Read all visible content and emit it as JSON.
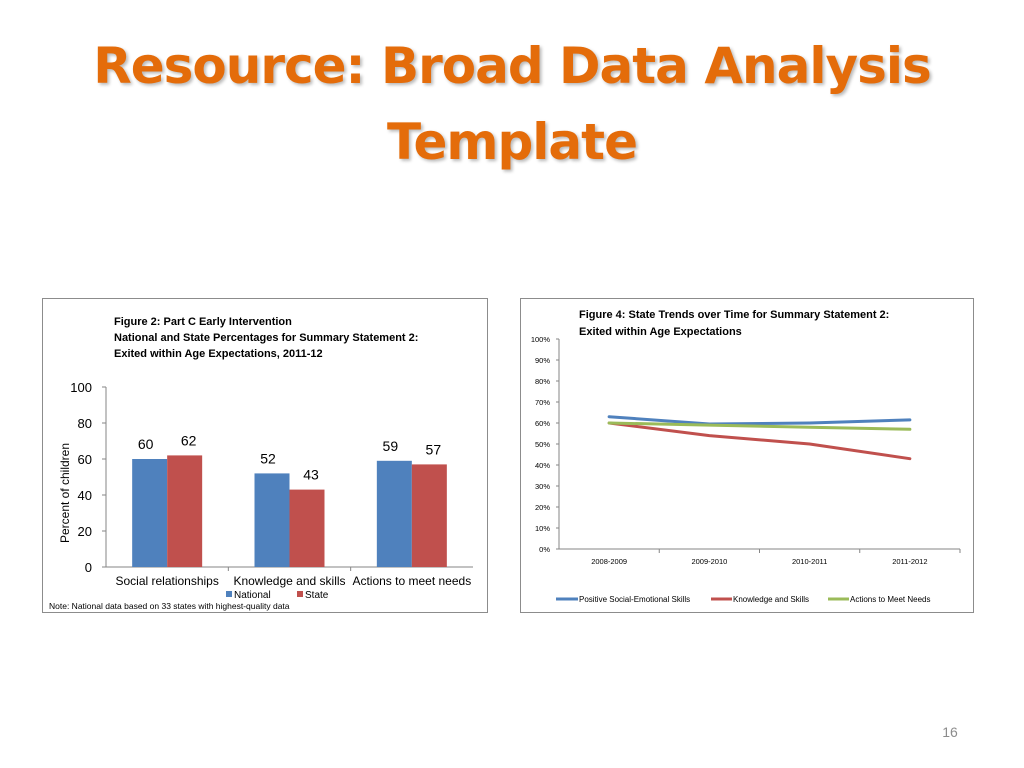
{
  "slide": {
    "title_line1": "Resource: Broad Data Analysis",
    "title_line2": "Template",
    "page_number": "16"
  },
  "colors": {
    "title": "#e46c0a",
    "national": "#4f81bd",
    "state": "#c0504d",
    "positive": "#4f81bd",
    "knowledge": "#c0504d",
    "actions": "#9bbb59"
  },
  "chart_data": [
    {
      "type": "bar",
      "title_lines": [
        "Figure 2: Part C Early Intervention",
        "National and State Percentages for Summary Statement 2:",
        "Exited within Age Expectations, 2011-12"
      ],
      "ylabel": "Percent of children",
      "xlabel": "",
      "ylim": [
        0,
        100
      ],
      "yticks": [
        0,
        20,
        40,
        60,
        80,
        100
      ],
      "categories": [
        "Social relationships",
        "Knowledge and skills",
        "Actions to meet needs"
      ],
      "series": [
        {
          "name": "National",
          "values": [
            60,
            52,
            59
          ]
        },
        {
          "name": "State",
          "values": [
            62,
            43,
            57
          ]
        }
      ],
      "data_labels": true,
      "legend": "bottom",
      "grid": false,
      "note": "Note: National data based on 33 states with highest-quality data"
    },
    {
      "type": "line",
      "title_lines": [
        "Figure 4: State Trends over Time for Summary Statement 2:",
        "Exited within Age Expectations"
      ],
      "ylim": [
        0,
        100
      ],
      "yticks": [
        "0%",
        "10%",
        "20%",
        "30%",
        "40%",
        "50%",
        "60%",
        "70%",
        "80%",
        "90%",
        "100%"
      ],
      "categories": [
        "2008-2009",
        "2009-2010",
        "2010-2011",
        "2011-2012"
      ],
      "series": [
        {
          "name": "Positive Social-Emotional Skills",
          "values": [
            63,
            59.5,
            60,
            61.5
          ]
        },
        {
          "name": "Knowledge and Skills",
          "values": [
            60,
            54,
            50,
            43
          ]
        },
        {
          "name": "Actions to Meet Needs",
          "values": [
            60,
            59,
            58,
            57
          ]
        }
      ],
      "legend": "bottom",
      "grid": false
    }
  ]
}
